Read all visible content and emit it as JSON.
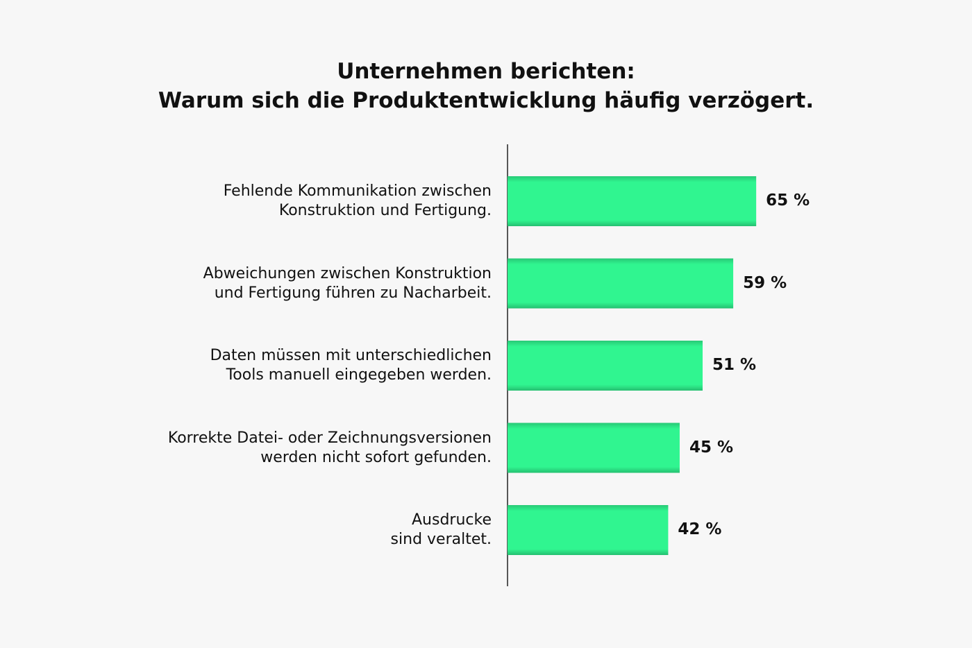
{
  "chart_data": {
    "type": "barh",
    "title": "Unternehmen berichten:\nWarum sich die Produktentwicklung häufig verzögert.",
    "categories": [
      "Fehlende Kommunikation zwischen\nKonstruktion und Fertigung.",
      "Abweichungen zwischen Konstruktion\nund Fertigung führen zu Nacharbeit.",
      "Daten müssen mit unterschiedlichen\nTools manuell eingegeben werden.",
      "Korrekte Datei- oder Zeichnungsversionen\nwerden nicht sofort gefunden.",
      "Ausdrucke\nsind veraltet."
    ],
    "values": [
      65,
      59,
      51,
      45,
      42
    ],
    "value_labels": [
      "65 %",
      "59 %",
      "51 %",
      "45 %",
      "42 %"
    ],
    "color": "#30f590",
    "xlim": [
      0,
      100
    ]
  }
}
